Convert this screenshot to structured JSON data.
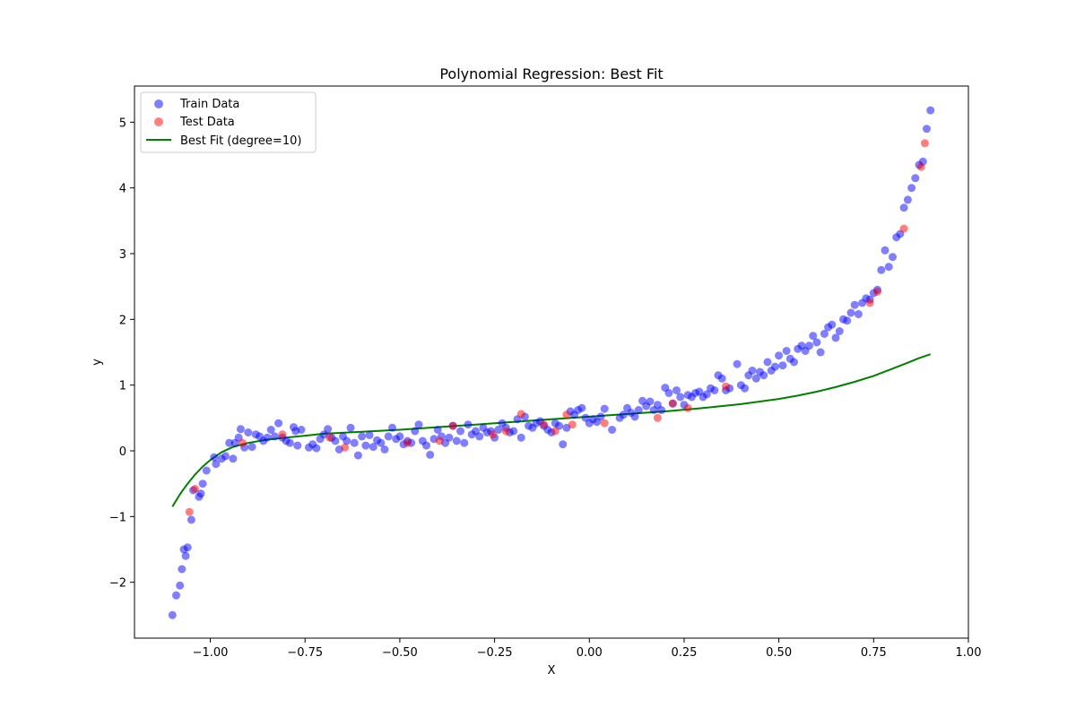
{
  "chart_data": {
    "type": "scatter",
    "title": "Polynomial Regression: Best Fit",
    "xlabel": "X",
    "ylabel": "y",
    "xlim": [
      -1.2,
      1.0
    ],
    "ylim": [
      -2.85,
      5.55
    ],
    "xticks": [
      -1.0,
      -0.75,
      -0.5,
      -0.25,
      0.0,
      0.25,
      0.5,
      0.75,
      1.0
    ],
    "xtick_labels": [
      "−1.00",
      "−0.75",
      "−0.50",
      "−0.25",
      "0.00",
      "0.25",
      "0.50",
      "0.75",
      "1.00"
    ],
    "yticks": [
      -2,
      -1,
      0,
      1,
      2,
      3,
      4,
      5
    ],
    "ytick_labels": [
      "−2",
      "−1",
      "0",
      "1",
      "2",
      "3",
      "4",
      "5"
    ],
    "grid": false,
    "legend_position": "top-left",
    "colors": {
      "train": "#0000ff",
      "test": "#ff0000",
      "fit": "#008000"
    },
    "series": [
      {
        "name": "Train Data",
        "kind": "scatter",
        "x": [
          -1.1,
          -1.09,
          -1.08,
          -1.075,
          -1.07,
          -1.065,
          -1.06,
          -1.05,
          -1.045,
          -1.03,
          -1.025,
          -1.02,
          -1.01,
          -0.99,
          -0.985,
          -0.97,
          -0.96,
          -0.95,
          -0.94,
          -0.935,
          -0.925,
          -0.92,
          -0.91,
          -0.9,
          -0.89,
          -0.88,
          -0.87,
          -0.86,
          -0.85,
          -0.84,
          -0.83,
          -0.82,
          -0.81,
          -0.8,
          -0.79,
          -0.78,
          -0.775,
          -0.77,
          -0.76,
          -0.74,
          -0.73,
          -0.72,
          -0.71,
          -0.7,
          -0.69,
          -0.68,
          -0.67,
          -0.66,
          -0.65,
          -0.64,
          -0.63,
          -0.62,
          -0.61,
          -0.6,
          -0.59,
          -0.58,
          -0.57,
          -0.56,
          -0.55,
          -0.54,
          -0.53,
          -0.52,
          -0.51,
          -0.5,
          -0.49,
          -0.48,
          -0.47,
          -0.46,
          -0.45,
          -0.44,
          -0.43,
          -0.42,
          -0.41,
          -0.4,
          -0.39,
          -0.38,
          -0.37,
          -0.36,
          -0.35,
          -0.34,
          -0.33,
          -0.32,
          -0.31,
          -0.3,
          -0.29,
          -0.28,
          -0.27,
          -0.26,
          -0.25,
          -0.24,
          -0.23,
          -0.22,
          -0.21,
          -0.2,
          -0.19,
          -0.18,
          -0.17,
          -0.16,
          -0.15,
          -0.14,
          -0.13,
          -0.12,
          -0.11,
          -0.1,
          -0.09,
          -0.08,
          -0.07,
          -0.06,
          -0.05,
          -0.04,
          -0.03,
          -0.02,
          -0.01,
          0.0,
          0.01,
          0.02,
          0.03,
          0.04,
          0.06,
          0.08,
          0.09,
          0.1,
          0.11,
          0.12,
          0.13,
          0.14,
          0.15,
          0.16,
          0.17,
          0.18,
          0.19,
          0.2,
          0.21,
          0.22,
          0.23,
          0.24,
          0.25,
          0.26,
          0.27,
          0.28,
          0.29,
          0.3,
          0.31,
          0.32,
          0.33,
          0.34,
          0.35,
          0.36,
          0.37,
          0.39,
          0.4,
          0.41,
          0.42,
          0.43,
          0.44,
          0.45,
          0.46,
          0.47,
          0.48,
          0.49,
          0.5,
          0.51,
          0.52,
          0.53,
          0.54,
          0.55,
          0.56,
          0.57,
          0.58,
          0.59,
          0.6,
          0.61,
          0.62,
          0.63,
          0.64,
          0.65,
          0.66,
          0.67,
          0.68,
          0.69,
          0.7,
          0.71,
          0.72,
          0.73,
          0.74,
          0.75,
          0.76,
          0.77,
          0.78,
          0.79,
          0.8,
          0.81,
          0.82,
          0.83,
          0.84,
          0.85,
          0.86,
          0.87,
          0.88,
          0.89,
          0.9
        ],
        "y": [
          -2.5,
          -2.2,
          -2.05,
          -1.8,
          -1.5,
          -1.6,
          -1.47,
          -1.05,
          -0.6,
          -0.7,
          -0.65,
          -0.5,
          -0.3,
          -0.1,
          -0.2,
          -0.12,
          -0.08,
          0.12,
          -0.12,
          0.12,
          0.2,
          0.33,
          0.05,
          0.28,
          0.06,
          0.25,
          0.22,
          0.15,
          0.2,
          0.32,
          0.22,
          0.42,
          0.2,
          0.15,
          0.12,
          0.36,
          0.3,
          0.08,
          0.32,
          0.05,
          0.1,
          0.04,
          0.18,
          0.25,
          0.33,
          0.2,
          0.15,
          0.02,
          0.22,
          0.15,
          0.35,
          0.12,
          -0.07,
          0.22,
          0.08,
          0.24,
          0.06,
          0.16,
          0.12,
          0.02,
          0.22,
          0.35,
          0.18,
          0.22,
          0.1,
          0.15,
          0.12,
          0.3,
          0.4,
          0.15,
          0.08,
          -0.06,
          0.18,
          0.32,
          0.22,
          0.12,
          0.2,
          0.38,
          0.15,
          0.3,
          0.12,
          0.4,
          0.25,
          0.3,
          0.22,
          0.35,
          0.28,
          0.3,
          0.2,
          0.32,
          0.42,
          0.35,
          0.28,
          0.3,
          0.48,
          0.2,
          0.52,
          0.38,
          0.35,
          0.42,
          0.45,
          0.38,
          0.32,
          0.28,
          0.42,
          0.38,
          0.1,
          0.35,
          0.6,
          0.55,
          0.62,
          0.65,
          0.5,
          0.42,
          0.48,
          0.44,
          0.52,
          0.64,
          0.32,
          0.5,
          0.55,
          0.65,
          0.58,
          0.52,
          0.62,
          0.76,
          0.68,
          0.75,
          0.62,
          0.7,
          0.62,
          0.96,
          0.88,
          0.72,
          0.92,
          0.82,
          0.7,
          0.85,
          0.82,
          0.88,
          0.9,
          0.82,
          0.86,
          0.95,
          0.92,
          1.15,
          1.1,
          0.92,
          0.95,
          1.32,
          1.0,
          0.95,
          1.15,
          1.22,
          1.1,
          1.2,
          1.15,
          1.35,
          1.22,
          1.28,
          1.45,
          1.3,
          1.52,
          1.4,
          1.35,
          1.55,
          1.6,
          1.52,
          1.6,
          1.75,
          1.65,
          1.5,
          1.78,
          1.88,
          1.92,
          1.72,
          1.82,
          2.0,
          1.98,
          2.1,
          2.22,
          2.08,
          2.25,
          2.32,
          2.3,
          2.4,
          2.45,
          2.75,
          3.05,
          2.8,
          2.95,
          3.25,
          3.3,
          3.7,
          3.82,
          4.0,
          4.15,
          4.35,
          4.4,
          4.9,
          5.18
        ]
      },
      {
        "name": "Test Data",
        "kind": "scatter",
        "x": [
          -1.055,
          -1.04,
          -0.915,
          -0.81,
          -0.685,
          -0.645,
          -0.48,
          -0.395,
          -0.36,
          -0.255,
          -0.22,
          -0.18,
          -0.12,
          -0.09,
          -0.06,
          -0.045,
          0.04,
          0.18,
          0.22,
          0.26,
          0.36,
          0.74,
          0.76,
          0.83,
          0.875,
          0.885
        ],
        "y": [
          -0.93,
          -0.58,
          0.12,
          0.25,
          0.2,
          0.05,
          0.12,
          0.15,
          0.38,
          0.25,
          0.3,
          0.56,
          0.4,
          0.3,
          0.55,
          0.4,
          0.42,
          0.5,
          0.72,
          0.65,
          0.98,
          2.25,
          2.42,
          3.38,
          4.32,
          4.68
        ]
      },
      {
        "name": "Best Fit (degree=10)",
        "kind": "line",
        "x": [
          -1.1,
          -1.08,
          -1.06,
          -1.04,
          -1.02,
          -1.0,
          -0.97,
          -0.94,
          -0.9,
          -0.85,
          -0.8,
          -0.75,
          -0.7,
          -0.6,
          -0.5,
          -0.4,
          -0.3,
          -0.2,
          -0.1,
          0.0,
          0.1,
          0.2,
          0.3,
          0.4,
          0.5,
          0.55,
          0.6,
          0.65,
          0.7,
          0.75,
          0.8,
          0.84,
          0.87,
          0.9
        ],
        "y": [
          -0.85,
          -0.66,
          -0.5,
          -0.36,
          -0.24,
          -0.14,
          -0.02,
          0.06,
          0.12,
          0.17,
          0.2,
          0.23,
          0.26,
          0.29,
          0.32,
          0.36,
          0.4,
          0.44,
          0.48,
          0.52,
          0.56,
          0.6,
          0.65,
          0.71,
          0.79,
          0.84,
          0.9,
          0.97,
          1.05,
          1.14,
          1.25,
          1.34,
          1.41,
          1.47
        ]
      }
    ]
  }
}
